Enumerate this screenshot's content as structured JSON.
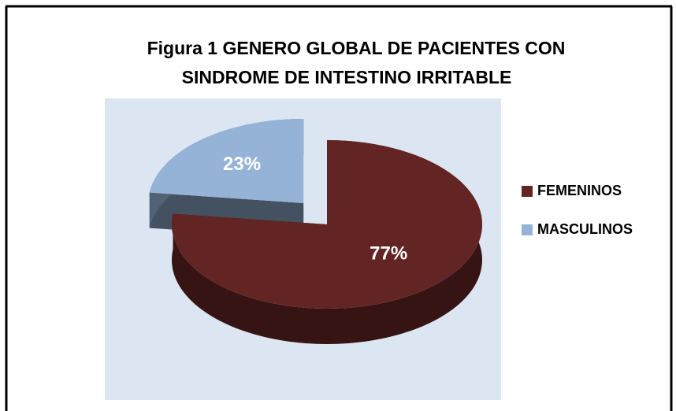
{
  "chart_data": {
    "type": "pie",
    "title": [
      "Figura  1   GENERO GLOBAL DE PACIENTES CON",
      "SINDROME DE INTESTINO IRRITABLE"
    ],
    "categories": [
      "FEMENINOS",
      "MASCULINOS"
    ],
    "values": [
      77,
      23
    ],
    "value_labels": [
      "77%",
      "23%"
    ],
    "colors": [
      "#632523",
      "#95b3d7"
    ],
    "legend": "right"
  }
}
